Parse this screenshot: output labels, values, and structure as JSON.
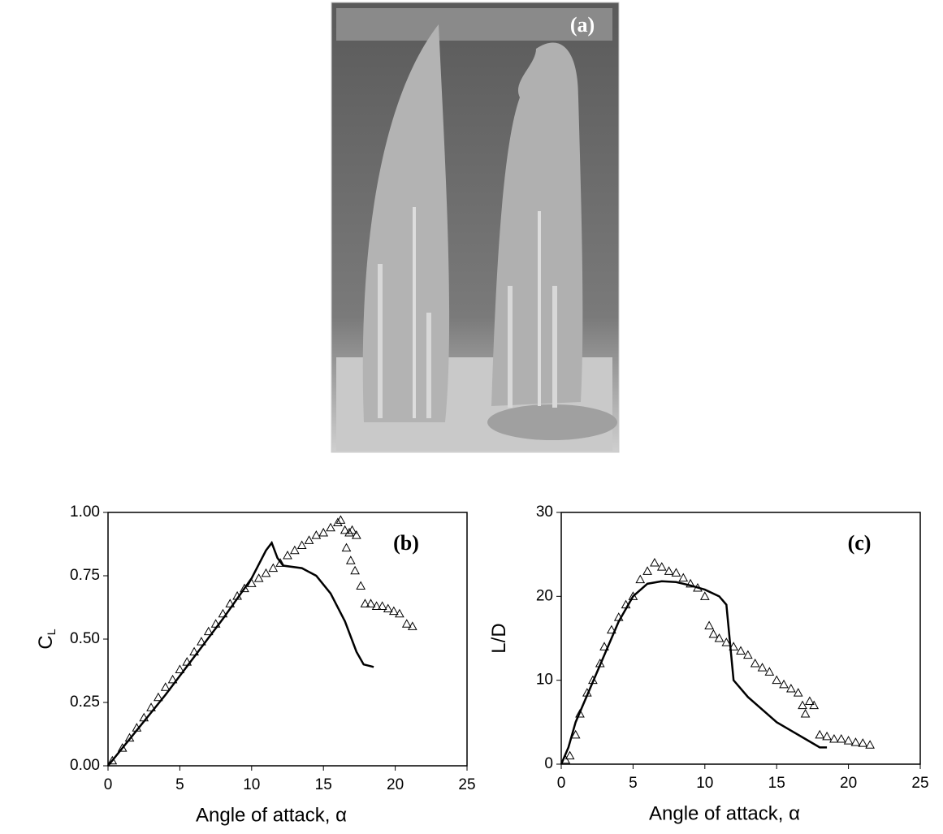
{
  "photo": {
    "label": "(a)"
  },
  "chart_data": [
    {
      "type": "line",
      "annotation": "(b)",
      "xlabel": "Angle of attack, α",
      "ylabel": "C",
      "ylabel_sub": "L",
      "xlim": [
        0,
        25
      ],
      "xticks": [
        0,
        5,
        10,
        15,
        20,
        25
      ],
      "ylim": [
        0,
        1
      ],
      "yticks": [
        {
          "value": 0,
          "label": "0.00"
        },
        {
          "value": 0.25,
          "label": "0.25"
        },
        {
          "value": 0.5,
          "label": "0.50"
        },
        {
          "value": 0.75,
          "label": "0.75"
        },
        {
          "value": 1,
          "label": "1.00"
        }
      ],
      "series": [
        {
          "color": "#000000",
          "style": "line",
          "x": [
            0,
            2,
            4,
            6,
            8,
            10,
            11,
            11.4,
            11.8,
            12.2,
            13.5,
            14.5,
            15.5,
            16.5,
            17.3,
            17.8,
            18.5
          ],
          "values": [
            0,
            0.14,
            0.28,
            0.43,
            0.58,
            0.74,
            0.85,
            0.88,
            0.82,
            0.79,
            0.78,
            0.75,
            0.68,
            0.57,
            0.45,
            0.4,
            0.39
          ]
        },
        {
          "color": "#000000",
          "style": "triangle",
          "x": [
            0.3,
            1,
            1.5,
            2,
            2.5,
            3,
            3.5,
            4,
            4.5,
            5,
            5.5,
            6,
            6.5,
            7,
            7.5,
            8,
            8.5,
            9,
            9.5,
            10,
            10.5,
            11,
            11.5,
            12,
            12.5,
            13,
            13.5,
            14,
            14.5,
            15,
            15.5,
            16,
            16.2,
            16.5,
            16.8,
            17,
            17.3,
            16.6,
            16.9,
            17.2,
            17.6,
            17.9,
            18.3,
            18.7,
            19.1,
            19.5,
            19.9,
            20.3,
            20.8,
            21.2
          ],
          "values": [
            0.02,
            0.07,
            0.11,
            0.15,
            0.19,
            0.23,
            0.27,
            0.31,
            0.34,
            0.38,
            0.41,
            0.45,
            0.49,
            0.53,
            0.56,
            0.6,
            0.64,
            0.67,
            0.7,
            0.72,
            0.74,
            0.76,
            0.78,
            0.8,
            0.83,
            0.85,
            0.87,
            0.89,
            0.91,
            0.92,
            0.94,
            0.96,
            0.97,
            0.93,
            0.92,
            0.93,
            0.91,
            0.86,
            0.81,
            0.77,
            0.71,
            0.64,
            0.64,
            0.63,
            0.63,
            0.62,
            0.61,
            0.6,
            0.56,
            0.55
          ]
        }
      ]
    },
    {
      "type": "line",
      "annotation": "(c)",
      "xlabel": "Angle of attack, α",
      "ylabel": "L/D",
      "xlim": [
        0,
        25
      ],
      "xticks": [
        0,
        5,
        10,
        15,
        20,
        25
      ],
      "ylim": [
        0,
        30
      ],
      "yticks": [
        0,
        10,
        20,
        30
      ],
      "series": [
        {
          "color": "#000000",
          "style": "line",
          "x": [
            0,
            0.5,
            1,
            2,
            3,
            4,
            5,
            6,
            7,
            8,
            9,
            10,
            11,
            11.5,
            12,
            13,
            14,
            15,
            16,
            17,
            18,
            18.5
          ],
          "values": [
            0,
            2,
            5,
            9,
            13,
            17,
            20,
            21.5,
            21.8,
            21.7,
            21.3,
            20.8,
            20,
            19,
            10,
            8,
            6.5,
            5,
            4,
            3,
            2,
            2
          ]
        },
        {
          "color": "#000000",
          "style": "triangle",
          "x": [
            0.3,
            0.6,
            1,
            1.3,
            1.8,
            2.2,
            2.7,
            3,
            3.5,
            4,
            4.5,
            5,
            5.5,
            6,
            6.5,
            7,
            7.5,
            8,
            8.5,
            9,
            9.5,
            10,
            10.3,
            10.6,
            11,
            11.5,
            12,
            12.5,
            13,
            13.5,
            14,
            14.5,
            15,
            15.5,
            16,
            16.5,
            16.8,
            17,
            17.3,
            17.6,
            18,
            18.5,
            19,
            19.5,
            20,
            20.5,
            21,
            21.5
          ],
          "values": [
            0.5,
            1,
            3.5,
            6,
            8.5,
            10,
            12,
            14,
            16,
            17.5,
            19,
            20,
            22,
            23,
            24,
            23.5,
            23,
            22.8,
            22.2,
            21.5,
            21,
            20,
            16.5,
            15.5,
            15,
            14.5,
            14,
            13.5,
            13,
            12,
            11.5,
            11,
            10,
            9.5,
            9,
            8.5,
            7,
            6,
            7.5,
            7,
            3.5,
            3.3,
            3,
            3,
            2.8,
            2.6,
            2.5,
            2.3
          ]
        }
      ]
    }
  ]
}
